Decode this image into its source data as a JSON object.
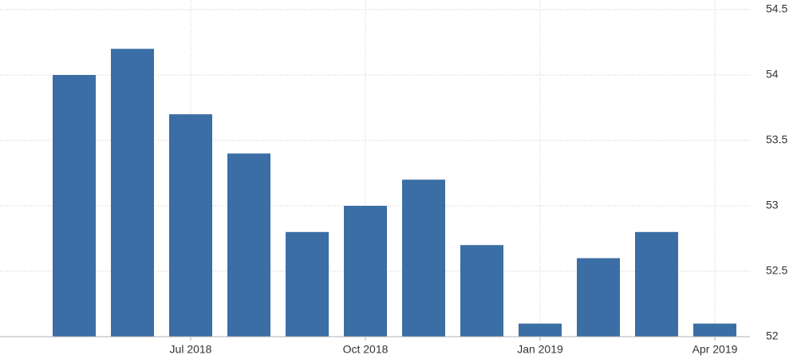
{
  "chart_data": {
    "type": "bar",
    "categories": [
      null,
      null,
      "Jul 2018",
      null,
      null,
      "Oct 2018",
      null,
      null,
      "Jan 2019",
      null,
      null,
      "Apr 2019"
    ],
    "values": [
      54.0,
      54.2,
      53.7,
      53.4,
      52.8,
      53.0,
      53.2,
      52.7,
      52.1,
      52.6,
      52.8,
      52.1
    ],
    "color": "#3a6ea5",
    "ylim": [
      52,
      54.5
    ],
    "yticks": [
      52,
      52.5,
      53,
      53.5,
      54,
      54.5
    ],
    "grid": true
  }
}
